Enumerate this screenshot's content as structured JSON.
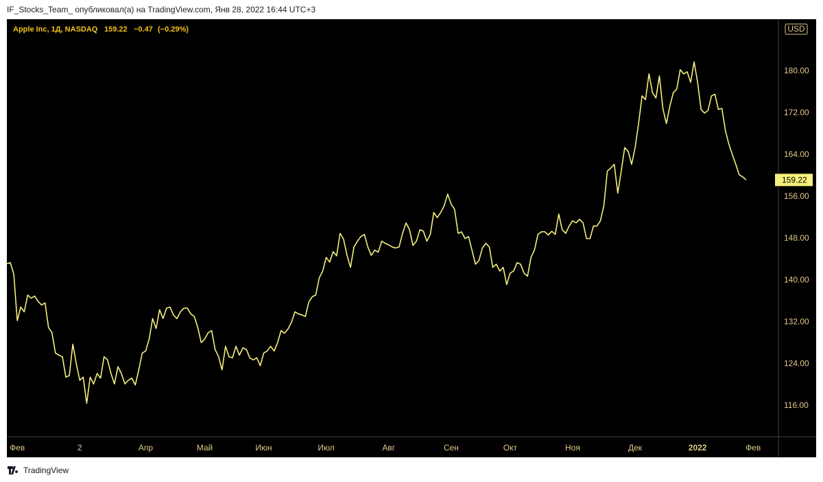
{
  "header": "IF_Stocks_Team_ опубликовал(а) на TradingView.com, Янв 28, 2022 16:44 UTC+3",
  "footer": "TradingView",
  "chart_data": {
    "type": "line",
    "legend": {
      "symbol": "Apple Inc, 1Д, NASDAQ",
      "change": "−0.47",
      "change_pct": "(−0.29%)"
    },
    "currency": "USD",
    "color": "#f6f07c",
    "grid": false,
    "ylim": [
      110.1,
      189.7
    ],
    "yticks": [
      {
        "value": 116,
        "label": "116.00"
      },
      {
        "value": 124,
        "label": "124.00"
      },
      {
        "value": 132,
        "label": "132.00"
      },
      {
        "value": 140,
        "label": "140.00"
      },
      {
        "value": 148,
        "label": "148.00"
      },
      {
        "value": 156,
        "label": "156.00"
      },
      {
        "value": 164,
        "label": "164.00"
      },
      {
        "value": 172,
        "label": "172.00"
      },
      {
        "value": 180,
        "label": "180.00"
      }
    ],
    "categories": [
      null,
      null,
      null,
      "Фев",
      null,
      null,
      null,
      null,
      null,
      null,
      null,
      null,
      null,
      null,
      null,
      null,
      null,
      null,
      null,
      null,
      null,
      "2",
      null,
      null,
      null,
      null,
      null,
      null,
      null,
      null,
      null,
      null,
      null,
      null,
      null,
      null,
      null,
      null,
      null,
      null,
      "Апр",
      null,
      null,
      null,
      null,
      null,
      null,
      null,
      null,
      null,
      null,
      null,
      null,
      null,
      null,
      null,
      null,
      "Май",
      null,
      null,
      null,
      null,
      null,
      null,
      null,
      null,
      null,
      null,
      null,
      null,
      null,
      null,
      null,
      null,
      "Июн",
      null,
      null,
      null,
      null,
      null,
      null,
      null,
      null,
      null,
      null,
      null,
      null,
      null,
      null,
      null,
      null,
      null,
      "Июл",
      null,
      null,
      null,
      null,
      null,
      null,
      null,
      null,
      null,
      null,
      null,
      null,
      null,
      null,
      null,
      null,
      null,
      "Авг",
      null,
      null,
      null,
      null,
      null,
      null,
      null,
      null,
      null,
      null,
      null,
      null,
      null,
      null,
      null,
      null,
      null,
      "Сен",
      null,
      null,
      null,
      null,
      null,
      null,
      null,
      null,
      null,
      null,
      null,
      null,
      null,
      null,
      null,
      null,
      "Окт",
      null,
      null,
      null,
      null,
      null,
      null,
      null,
      null,
      null,
      null,
      null,
      null,
      null,
      null,
      null,
      null,
      null,
      "Ноя",
      null,
      null,
      null,
      null,
      null,
      null,
      null,
      null,
      null,
      null,
      null,
      null,
      null,
      null,
      null,
      null,
      null,
      "Дек",
      null,
      null,
      null,
      null,
      null,
      null,
      null,
      null,
      null,
      null,
      null,
      null,
      null,
      null,
      null,
      null,
      null,
      "2022",
      null,
      null,
      null,
      null,
      null,
      null,
      null,
      null,
      null,
      null,
      null,
      null,
      null,
      null,
      null,
      "Фев"
    ],
    "values": [
      143.2,
      143.4,
      141.2,
      132.3,
      134.9,
      134,
      137.2,
      136.6,
      137,
      136,
      135.3,
      135.7,
      131,
      130,
      126.1,
      125.7,
      125.4,
      121.5,
      121.8,
      127.8,
      124.1,
      120.9,
      121.5,
      116.5,
      121.5,
      120.2,
      122.2,
      121.3,
      125.4,
      124.8,
      122.2,
      120.2,
      123.5,
      122.2,
      120.2,
      120.9,
      121.3,
      120,
      122.9,
      126.1,
      126.5,
      128.8,
      132.7,
      130.8,
      134.4,
      132.7,
      134.7,
      134.9,
      133.4,
      132.7,
      134,
      134.7,
      134.7,
      133.6,
      133.1,
      131,
      128.1,
      128.8,
      130,
      130.4,
      126.8,
      125.4,
      122.9,
      127.4,
      125.4,
      125.2,
      127.4,
      125.7,
      127.1,
      126.8,
      125.2,
      124.8,
      125.2,
      123.7,
      126.1,
      126.5,
      127.4,
      126.5,
      128.1,
      130.4,
      129.9,
      130.7,
      132,
      134,
      133.6,
      133.4,
      133.1,
      135.9,
      136.9,
      137.2,
      140.5,
      141.8,
      144.4,
      143.5,
      145.5,
      144.7,
      149,
      147.9,
      144.8,
      142.5,
      146.4,
      147.5,
      148.4,
      148.8,
      146.4,
      144.8,
      145.8,
      145.4,
      147.5,
      147.1,
      146.8,
      146.4,
      146.2,
      146.4,
      149,
      151,
      149.7,
      146.7,
      147.5,
      149.7,
      149.4,
      147.5,
      148.8,
      153,
      152,
      153,
      154.3,
      156.5,
      154.6,
      153.6,
      149,
      149.3,
      148,
      148.4,
      145.8,
      143.1,
      143.8,
      146.2,
      147.1,
      146.4,
      142.5,
      143.1,
      141.8,
      142.5,
      139.2,
      141.4,
      141.8,
      143.4,
      143.1,
      141.4,
      140.8,
      144.4,
      145.8,
      148.8,
      149.3,
      149.3,
      148.7,
      149.4,
      148.8,
      152.7,
      149.7,
      149,
      150.4,
      151.4,
      151,
      151.7,
      151,
      148,
      148,
      150.4,
      150.4,
      151.4,
      154.3,
      160.9,
      161.5,
      162.2,
      156.7,
      160.9,
      165.4,
      164.7,
      162.2,
      165.4,
      170,
      175.3,
      174.6,
      179.5,
      175.9,
      174.9,
      179.1,
      172.9,
      170,
      173.3,
      175.9,
      176.6,
      180.3,
      179.5,
      179.9,
      177.9,
      181.8,
      177.9,
      172.7,
      172,
      172.5,
      175.3,
      175.6,
      172.7,
      172.9,
      168.7,
      166.1,
      164.1,
      162.2,
      160.2,
      159.8,
      159.22,
      null,
      null
    ]
  }
}
